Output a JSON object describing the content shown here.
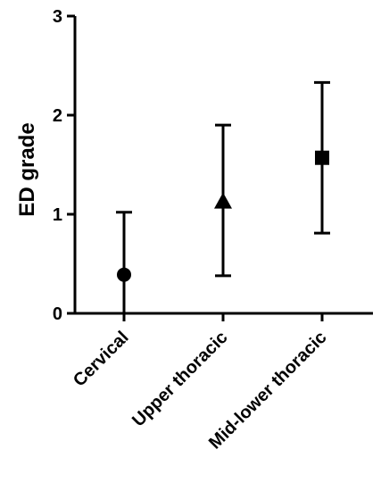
{
  "chart_data": {
    "type": "scatter",
    "title": "",
    "xlabel": "",
    "ylabel": "ED grade",
    "ylim": [
      0,
      3
    ],
    "yticks": [
      0,
      1,
      2,
      3
    ],
    "grid": false,
    "legend": "none",
    "categories": [
      "Cervical",
      "Upper thoracic",
      "Mid-lower thoracic"
    ],
    "points": [
      {
        "category": "Cervical",
        "mean": 0.39,
        "lower": -0.25,
        "upper": 1.02,
        "marker": "circle"
      },
      {
        "category": "Upper thoracic",
        "mean": 1.13,
        "lower": 0.38,
        "upper": 1.9,
        "marker": "triangle"
      },
      {
        "category": "Mid-lower thoracic",
        "mean": 1.57,
        "lower": 0.81,
        "upper": 2.33,
        "marker": "square"
      }
    ],
    "colors": {
      "marker": "#000000",
      "axis": "#000000"
    }
  }
}
